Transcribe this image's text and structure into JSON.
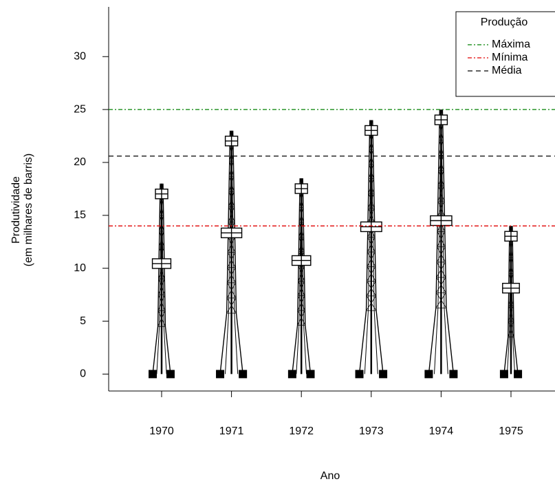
{
  "chart_data": {
    "type": "pictogram",
    "xlabel": "Ano",
    "ylabel": [
      "Produtividade",
      "(em milhares de barris)"
    ],
    "categories": [
      "1970",
      "1971",
      "1972",
      "1973",
      "1974",
      "1975"
    ],
    "values": [
      18,
      23,
      18.5,
      24,
      25,
      14
    ],
    "color": "#000000",
    "ylim": [
      -1.6,
      34.7
    ],
    "yticks": [
      0,
      5,
      10,
      15,
      20,
      25,
      30
    ],
    "legend_title": "Produção",
    "legend_position": "top-right",
    "reference_lines": [
      {
        "name": "Máxima",
        "value": 25,
        "color": "#008000",
        "dash": "6 3 2 3"
      },
      {
        "name": "Mínima",
        "value": 14,
        "color": "#e00000",
        "dash": "6 3 2 3"
      },
      {
        "name": "Média",
        "value": 20.6,
        "color": "#000000",
        "dash": "7 5"
      }
    ]
  }
}
